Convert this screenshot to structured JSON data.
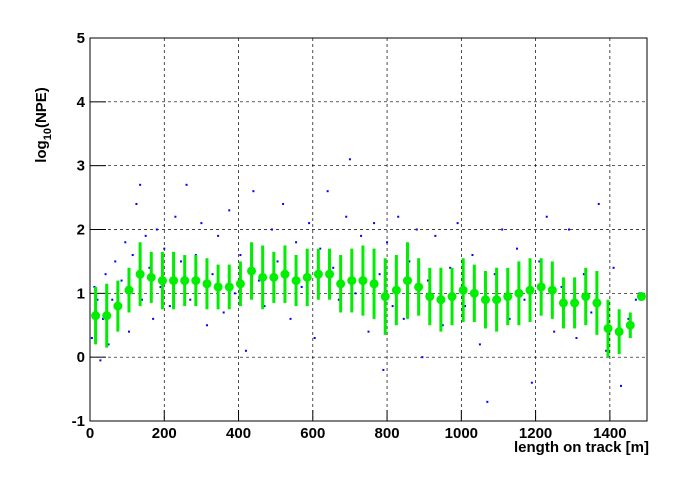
{
  "chart_data": {
    "type": "scatter",
    "ylabel_parts": [
      "log",
      "10",
      "(NPE)"
    ],
    "xlabel": "length on track [m]",
    "xlim": [
      0,
      1500
    ],
    "ylim": [
      -1,
      5
    ],
    "xticks": [
      0,
      200,
      400,
      600,
      800,
      1000,
      1200,
      1400
    ],
    "yticks": [
      -1,
      0,
      1,
      2,
      3,
      4,
      5
    ],
    "grid": true,
    "series": [
      {
        "type": "scatter",
        "color": "#0000ff",
        "x": [
          5,
          12,
          20,
          28,
          35,
          42,
          50,
          60,
          68,
          75,
          85,
          95,
          105,
          115,
          125,
          135,
          140,
          150,
          160,
          170,
          180,
          190,
          200,
          215,
          230,
          245,
          260,
          270,
          285,
          300,
          315,
          330,
          345,
          360,
          375,
          390,
          405,
          420,
          440,
          455,
          470,
          490,
          505,
          520,
          540,
          555,
          570,
          590,
          605,
          620,
          640,
          655,
          670,
          690,
          700,
          715,
          730,
          750,
          765,
          780,
          790,
          800,
          815,
          830,
          845,
          860,
          880,
          895,
          910,
          930,
          950,
          970,
          990,
          1010,
          1030,
          1050,
          1070,
          1090,
          1110,
          1130,
          1150,
          1170,
          1190,
          1210,
          1230,
          1250,
          1270,
          1290,
          1310,
          1330,
          1350,
          1370,
          1390,
          1410,
          1430,
          1450,
          1470,
          1480
        ],
        "values": [
          0.3,
          1.1,
          0.9,
          -0.05,
          0.6,
          1.3,
          0.2,
          0.9,
          1.5,
          0.7,
          1.2,
          1.8,
          0.4,
          1.6,
          2.4,
          2.7,
          0.9,
          1.9,
          1.4,
          0.6,
          2.0,
          1.1,
          1.7,
          0.8,
          2.2,
          1.5,
          2.7,
          0.9,
          1.6,
          2.1,
          0.5,
          1.3,
          1.9,
          0.7,
          2.3,
          1.0,
          1.6,
          0.1,
          2.6,
          1.2,
          0.8,
          2.0,
          1.5,
          2.4,
          0.6,
          1.8,
          1.1,
          2.1,
          0.3,
          1.7,
          2.6,
          1.4,
          0.9,
          2.2,
          3.1,
          1.0,
          1.9,
          0.4,
          2.1,
          1.3,
          -0.2,
          1.8,
          0.8,
          2.2,
          0.6,
          1.5,
          2.0,
          0.0,
          1.2,
          1.9,
          0.5,
          1.4,
          2.1,
          0.8,
          1.6,
          0.2,
          -0.7,
          1.3,
          2.0,
          0.6,
          1.7,
          0.9,
          -0.4,
          1.5,
          2.2,
          0.4,
          1.1,
          2.0,
          0.3,
          1.3,
          0.7,
          2.4,
          0.1,
          1.4,
          -0.45,
          0.6,
          0.9,
          1.0
        ]
      },
      {
        "type": "errorbar",
        "color": "#00ee00",
        "x": [
          15,
          45,
          75,
          105,
          135,
          165,
          195,
          225,
          255,
          285,
          315,
          345,
          375,
          405,
          435,
          465,
          495,
          525,
          555,
          585,
          615,
          645,
          675,
          705,
          735,
          765,
          795,
          825,
          855,
          885,
          915,
          945,
          975,
          1005,
          1035,
          1065,
          1095,
          1125,
          1155,
          1185,
          1215,
          1245,
          1275,
          1305,
          1335,
          1365,
          1395,
          1425,
          1455,
          1485
        ],
        "values": [
          0.65,
          0.65,
          0.8,
          1.05,
          1.3,
          1.25,
          1.2,
          1.2,
          1.2,
          1.2,
          1.15,
          1.1,
          1.1,
          1.15,
          1.35,
          1.25,
          1.25,
          1.3,
          1.2,
          1.25,
          1.3,
          1.3,
          1.15,
          1.2,
          1.2,
          1.15,
          0.95,
          1.05,
          1.2,
          1.1,
          0.95,
          0.9,
          0.95,
          1.05,
          1.0,
          0.9,
          0.9,
          0.95,
          1.0,
          1.05,
          1.1,
          1.05,
          0.85,
          0.85,
          0.95,
          0.85,
          0.45,
          0.4,
          0.5,
          0.95
        ],
        "errors": [
          0.45,
          0.5,
          0.4,
          0.35,
          0.5,
          0.4,
          0.45,
          0.45,
          0.4,
          0.4,
          0.4,
          0.35,
          0.35,
          0.35,
          0.45,
          0.5,
          0.4,
          0.45,
          0.4,
          0.45,
          0.4,
          0.4,
          0.45,
          0.5,
          0.55,
          0.55,
          0.6,
          0.55,
          0.6,
          0.45,
          0.45,
          0.5,
          0.45,
          0.5,
          0.45,
          0.45,
          0.5,
          0.45,
          0.5,
          0.5,
          0.45,
          0.45,
          0.4,
          0.4,
          0.45,
          0.5,
          0.45,
          0.35,
          0.2,
          0.05
        ]
      }
    ]
  }
}
